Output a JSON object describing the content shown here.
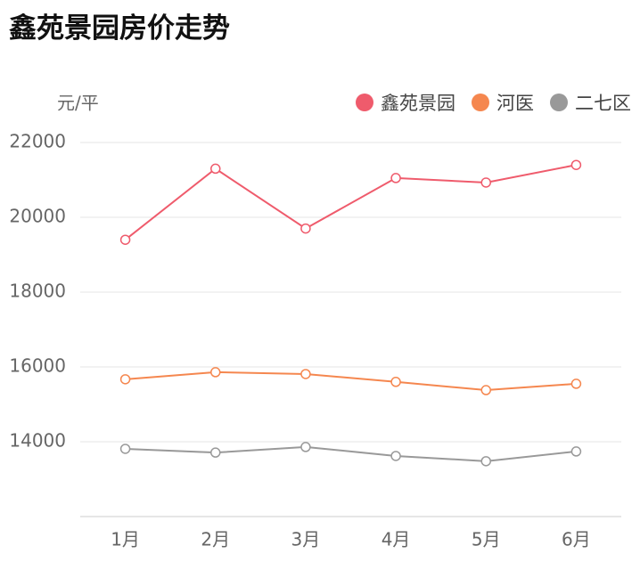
{
  "chart_data": {
    "type": "line",
    "title": "鑫苑景园房价走势",
    "y_label": "元/平",
    "categories": [
      "1月",
      "2月",
      "3月",
      "4月",
      "5月",
      "6月"
    ],
    "series": [
      {
        "name": "鑫苑景园",
        "color": "#ef5b6c",
        "values": [
          19400,
          21300,
          19700,
          21050,
          20930,
          21400
        ]
      },
      {
        "name": "河医",
        "color": "#f5874f",
        "values": [
          15670,
          15860,
          15810,
          15600,
          15380,
          15550
        ]
      },
      {
        "name": "二七区",
        "color": "#999999",
        "values": [
          13810,
          13710,
          13860,
          13620,
          13480,
          13740
        ]
      }
    ],
    "ylim": [
      12000,
      22000
    ],
    "yticks": [
      14000,
      16000,
      18000,
      20000,
      22000
    ],
    "grid": true,
    "legend": "top-right"
  }
}
